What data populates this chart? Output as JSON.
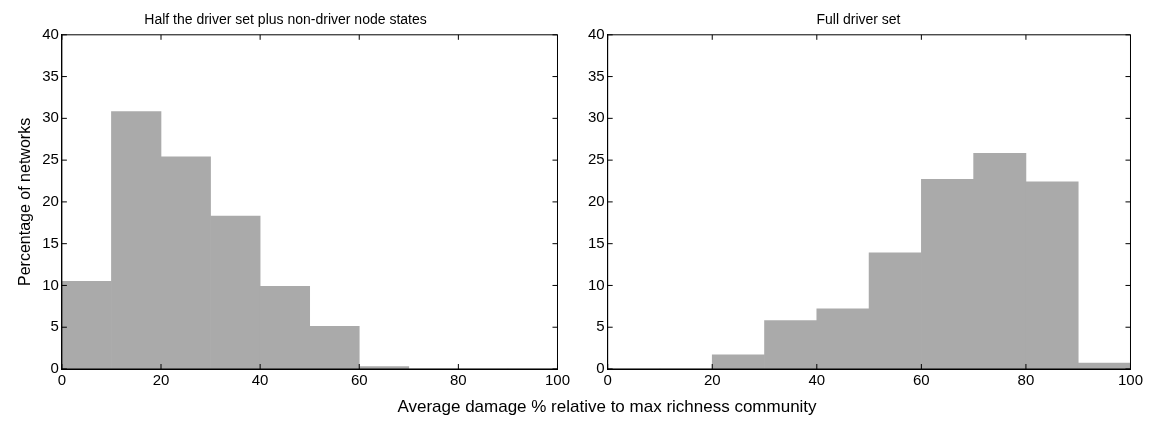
{
  "chart_data": [
    {
      "type": "histogram",
      "title": "Half the driver set plus non-driver node states",
      "xlabel": "Average damage % relative to max richness community",
      "ylabel": "Percentage of networks",
      "bins": [
        0,
        10,
        20,
        30,
        40,
        50,
        60,
        70,
        80,
        90,
        100
      ],
      "values": [
        10.5,
        30.8,
        25.4,
        18.3,
        9.9,
        5.1,
        0.3,
        0,
        0,
        0
      ],
      "color": "#aaaaaa",
      "xlim": [
        0,
        100
      ],
      "xticks": [
        0,
        20,
        40,
        60,
        80,
        100
      ],
      "ylim": [
        0,
        40
      ],
      "yticks": [
        0,
        5,
        10,
        15,
        20,
        25,
        30,
        35,
        40
      ],
      "grid": false
    },
    {
      "type": "histogram",
      "title": "Full driver set",
      "bins": [
        0,
        10,
        20,
        30,
        40,
        50,
        60,
        70,
        80,
        90,
        100
      ],
      "values": [
        0,
        0,
        1.7,
        5.8,
        7.2,
        13.9,
        22.7,
        25.8,
        22.4,
        0.7
      ],
      "color": "#aaaaaa",
      "xlim": [
        0,
        100
      ],
      "xticks": [
        0,
        20,
        40,
        60,
        80,
        100
      ],
      "ylim": [
        0,
        40
      ],
      "yticks": [
        0,
        5,
        10,
        15,
        20,
        25,
        30,
        35,
        40
      ],
      "grid": false
    }
  ]
}
